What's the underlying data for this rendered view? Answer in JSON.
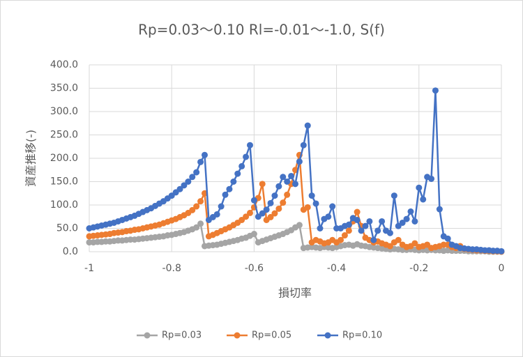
{
  "chart_data": {
    "type": "line",
    "title": "Rp=0.03～0.10 Rl=-0.01～-1.0, S(f)",
    "xlabel": "損切率",
    "ylabel": "資産推移(-)",
    "x": [
      -1,
      -0.99,
      -0.98,
      -0.97,
      -0.96,
      -0.95,
      -0.94,
      -0.93,
      -0.92,
      -0.91,
      -0.9,
      -0.89,
      -0.88,
      -0.87,
      -0.86,
      -0.85,
      -0.84,
      -0.83,
      -0.82,
      -0.81,
      -0.8,
      -0.79,
      -0.78,
      -0.77,
      -0.76,
      -0.75,
      -0.74,
      -0.73,
      -0.72,
      -0.71,
      -0.7,
      -0.69,
      -0.68,
      -0.67,
      -0.66,
      -0.65,
      -0.64,
      -0.63,
      -0.62,
      -0.61,
      -0.6,
      -0.59,
      -0.58,
      -0.57,
      -0.56,
      -0.55,
      -0.54,
      -0.53,
      -0.52,
      -0.51,
      -0.5,
      -0.49,
      -0.48,
      -0.47,
      -0.46,
      -0.45,
      -0.44,
      -0.43,
      -0.42,
      -0.41,
      -0.4,
      -0.39,
      -0.38,
      -0.37,
      -0.36,
      -0.35,
      -0.34,
      -0.33,
      -0.32,
      -0.31,
      -0.3,
      -0.29,
      -0.28,
      -0.27,
      -0.26,
      -0.25,
      -0.24,
      -0.23,
      -0.22,
      -0.21,
      -0.2,
      -0.19,
      -0.18,
      -0.17,
      -0.16,
      -0.15,
      -0.14,
      -0.13,
      -0.12,
      -0.11,
      -0.1,
      -0.09,
      -0.08,
      -0.07,
      -0.06,
      -0.05,
      -0.04,
      -0.03,
      -0.02,
      -0.01,
      0
    ],
    "series": [
      {
        "name": "Rp=0.03",
        "color": "#a5a5a5",
        "values": [
          20,
          20,
          21,
          21,
          22,
          22,
          23,
          24,
          24,
          25,
          26,
          26,
          27,
          28,
          29,
          30,
          31,
          32,
          33,
          35,
          36,
          38,
          40,
          42,
          45,
          48,
          52,
          60,
          12,
          13,
          14,
          15,
          17,
          19,
          21,
          23,
          25,
          28,
          30,
          34,
          38,
          20,
          23,
          26,
          29,
          32,
          35,
          38,
          42,
          46,
          52,
          57,
          8,
          9,
          10,
          9,
          8,
          10,
          9,
          8,
          10,
          12,
          14,
          15,
          13,
          16,
          13,
          12,
          10,
          9,
          8,
          7,
          6,
          5,
          6,
          5,
          4,
          4,
          5,
          4,
          3,
          4,
          3,
          4,
          3,
          3,
          2,
          3,
          2,
          2,
          2,
          2,
          1,
          1,
          1,
          1,
          1,
          0,
          0,
          0,
          0
        ]
      },
      {
        "name": "Rp=0.05",
        "color": "#ed7d31",
        "values": [
          33,
          34,
          35,
          36,
          37,
          38,
          40,
          41,
          42,
          44,
          45,
          47,
          48,
          50,
          52,
          54,
          56,
          58,
          61,
          64,
          67,
          70,
          74,
          78,
          83,
          89,
          97,
          108,
          125,
          33,
          36,
          40,
          44,
          48,
          52,
          57,
          62,
          68,
          75,
          83,
          95,
          115,
          145,
          68,
          74,
          82,
          92,
          105,
          122,
          145,
          175,
          207,
          90,
          95,
          20,
          25,
          22,
          18,
          20,
          25,
          20,
          25,
          35,
          45,
          65,
          85,
          55,
          30,
          25,
          20,
          22,
          18,
          15,
          12,
          20,
          25,
          15,
          10,
          12,
          18,
          10,
          12,
          15,
          8,
          10,
          12,
          15,
          15,
          10,
          8,
          12,
          6,
          5,
          4,
          3,
          3,
          2,
          2,
          1,
          1,
          0
        ]
      },
      {
        "name": "Rp=0.10",
        "color": "#4472c4",
        "values": [
          50,
          52,
          54,
          56,
          58,
          60,
          62,
          65,
          68,
          71,
          74,
          77,
          81,
          85,
          89,
          93,
          98,
          103,
          108,
          114,
          120,
          127,
          134,
          142,
          150,
          160,
          170,
          192,
          207,
          68,
          74,
          80,
          97,
          122,
          134,
          150,
          167,
          183,
          203,
          228,
          110,
          75,
          82,
          90,
          104,
          120,
          140,
          160,
          150,
          162,
          145,
          193,
          228,
          270,
          120,
          103,
          50,
          70,
          75,
          97,
          50,
          50,
          55,
          58,
          72,
          68,
          45,
          55,
          65,
          25,
          45,
          65,
          45,
          40,
          120,
          55,
          62,
          70,
          86,
          65,
          137,
          112,
          160,
          156,
          345,
          91,
          33,
          28,
          15,
          12,
          8,
          7,
          6,
          5,
          5,
          4,
          3,
          3,
          2,
          2,
          1
        ]
      }
    ],
    "xlim": [
      -1,
      0
    ],
    "xticks": [
      -1,
      -0.8,
      -0.6,
      -0.4,
      -0.2,
      0
    ],
    "ylim": [
      0,
      400
    ],
    "yticks": [
      {
        "value": 0,
        "label": "0.0"
      },
      {
        "value": 50,
        "label": "50.0"
      },
      {
        "value": 100,
        "label": "100.0"
      },
      {
        "value": 150,
        "label": "150.0"
      },
      {
        "value": 200,
        "label": "200.0"
      },
      {
        "value": 250,
        "label": "250.0"
      },
      {
        "value": 300,
        "label": "300.0"
      },
      {
        "value": 350,
        "label": "350.0"
      },
      {
        "value": 400,
        "label": "400.0"
      }
    ],
    "grid": true,
    "legend": "bottom"
  }
}
